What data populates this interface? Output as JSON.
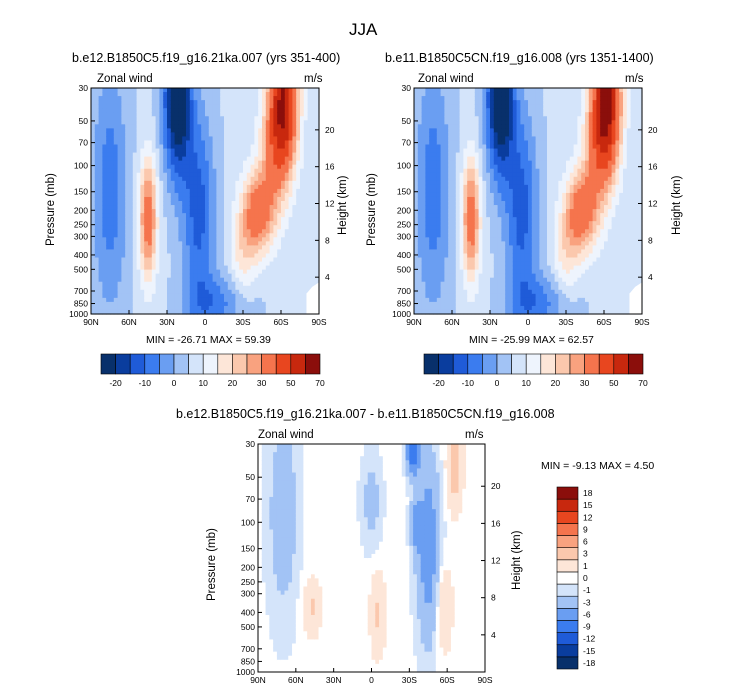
{
  "title": "JJA",
  "colors": {
    "full_scale": [
      "#08306b",
      "#0a3d9e",
      "#1f5bd8",
      "#3b7cef",
      "#6a9ef2",
      "#a2c3f5",
      "#d4e4fa",
      "#eef4fd",
      "#fde6d8",
      "#fbc8ad",
      "#f9a27f",
      "#f5744d",
      "#e8461f",
      "#c8280e",
      "#8b0e0b"
    ],
    "diff_scale": [
      "#08306b",
      "#0a3d9e",
      "#1f5bd8",
      "#3b7cef",
      "#6a9ef2",
      "#a2c3f5",
      "#d4e4fa",
      "#ffffff",
      "#fde6d8",
      "#fbc8ad",
      "#f9a27f",
      "#f5744d",
      "#e8461f",
      "#c8280e",
      "#8b0e0b"
    ]
  },
  "chart_data": [
    {
      "type": "heatmap",
      "id": "panel1",
      "title": "b.e12.B1850C5.f19_g16.21ka.007 (yrs 351-400)",
      "subtitle_left": "Zonal wind",
      "subtitle_right": "m/s",
      "xlabel": "",
      "ylabel": "Pressure (mb)",
      "ylabel_right": "Height (km)",
      "x_ticks": [
        "90N",
        "60N",
        "30N",
        "0",
        "30S",
        "60S",
        "90S"
      ],
      "y_ticks": [
        "30",
        "50",
        "70",
        "100",
        "150",
        "200",
        "250",
        "300",
        "400",
        "500",
        "700",
        "850",
        "1000"
      ],
      "y_ticks_right": [
        "20",
        "16",
        "12",
        "8",
        "4"
      ],
      "stats": "MIN = -26.71  MAX = 59.39",
      "min": -26.71,
      "max": 59.39,
      "colorbar_labels": [
        "-20",
        "-10",
        "0",
        "10",
        "20",
        "30",
        "50",
        "70"
      ]
    },
    {
      "type": "heatmap",
      "id": "panel2",
      "title": "b.e11.B1850C5CN.f19_g16.008 (yrs 1351-1400)",
      "subtitle_left": "Zonal wind",
      "subtitle_right": "m/s",
      "xlabel": "",
      "ylabel": "Pressure (mb)",
      "ylabel_right": "Height (km)",
      "x_ticks": [
        "90N",
        "60N",
        "30N",
        "0",
        "30S",
        "60S",
        "90S"
      ],
      "y_ticks": [
        "30",
        "50",
        "70",
        "100",
        "150",
        "200",
        "250",
        "300",
        "400",
        "500",
        "700",
        "850",
        "1000"
      ],
      "y_ticks_right": [
        "20",
        "16",
        "12",
        "8",
        "4"
      ],
      "stats": "MIN = -25.99  MAX = 62.57",
      "min": -25.99,
      "max": 62.57,
      "colorbar_labels": [
        "-20",
        "-10",
        "0",
        "10",
        "20",
        "30",
        "50",
        "70"
      ]
    },
    {
      "type": "heatmap",
      "id": "panel3",
      "title": "b.e12.B1850C5.f19_g16.21ka.007 - b.e11.B1850C5CN.f19_g16.008",
      "subtitle_left": "Zonal wind",
      "subtitle_right": "m/s",
      "xlabel": "",
      "ylabel": "Pressure (mb)",
      "ylabel_right": "Height (km)",
      "x_ticks": [
        "90N",
        "60N",
        "30N",
        "0",
        "30S",
        "60S",
        "90S"
      ],
      "y_ticks": [
        "30",
        "50",
        "70",
        "100",
        "150",
        "200",
        "250",
        "300",
        "400",
        "500",
        "700",
        "850",
        "1000"
      ],
      "y_ticks_right": [
        "20",
        "16",
        "12",
        "8",
        "4"
      ],
      "stats": "MIN = -9.13  MAX =  4.50",
      "min": -9.13,
      "max": 4.5,
      "colorbar_labels": [
        "18",
        "15",
        "12",
        "9",
        "6",
        "3",
        "1",
        "0",
        "-1",
        "-3",
        "-6",
        "-9",
        "-12",
        "-15",
        "-18"
      ]
    }
  ]
}
